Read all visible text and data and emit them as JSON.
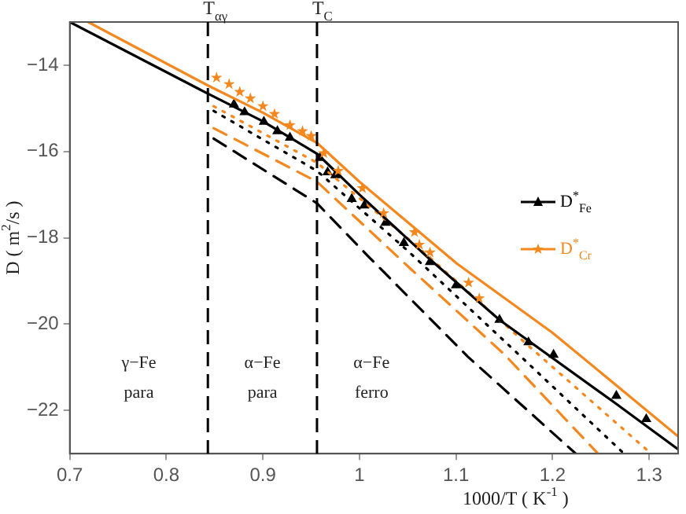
{
  "chart_data": {
    "type": "line",
    "xlabel": "1000/T ( K$^{-1}$ )",
    "ylabel": "D ( m$^{2}$/s )",
    "xlim": [
      0.7,
      1.33
    ],
    "ylim": [
      -23,
      -13
    ],
    "xticks": [
      0.7,
      0.8,
      0.9,
      1,
      1.1,
      1.2,
      1.3
    ],
    "yticks": [
      {
        "value": -22,
        "label": "−22"
      },
      {
        "value": -20,
        "label": "−20"
      },
      {
        "value": -18,
        "label": "−18"
      },
      {
        "value": -16,
        "label": "−16"
      },
      {
        "value": -14,
        "label": "−14"
      }
    ],
    "grid": false,
    "legend": "right",
    "marker": "none",
    "series": [
      {
        "name": "D$^{*}$$_{Fe}$",
        "color": "#000000",
        "line_style": "solid",
        "x": [
          0.7,
          0.843,
          0.9,
          0.956,
          1.0,
          1.073,
          1.145,
          1.263,
          1.33
        ],
        "values": [
          -13,
          -14.66,
          -15.3,
          -16.05,
          -17.0,
          -18.5,
          -19.9,
          -21.8,
          -22.9
        ]
      },
      {
        "name": "D$^{*}$$_{Cr}$",
        "color": "#f5871f",
        "line_style": "solid",
        "x": [
          0.719,
          0.843,
          0.9,
          0.956,
          1.0,
          1.101,
          1.2,
          1.33
        ],
        "values": [
          -13,
          -14.47,
          -15.1,
          -15.8,
          -16.7,
          -18.6,
          -20.2,
          -22.6
        ]
      },
      {
        "color": "#f5871f",
        "line_style": "dotted",
        "x": [
          0.849,
          0.956,
          1.06,
          1.18,
          1.302
        ],
        "values": [
          -14.95,
          -16.26,
          -18.2,
          -20.6,
          -23
        ]
      },
      {
        "color": "#000000",
        "line_style": "dotted",
        "x": [
          0.849,
          0.956,
          1.05,
          1.16,
          1.274
        ],
        "values": [
          -15.06,
          -16.45,
          -18.3,
          -20.6,
          -23
        ]
      },
      {
        "color": "#f5871f",
        "line_style": "dashed",
        "x": [
          0.849,
          0.956,
          1.054,
          1.15,
          1.247
        ],
        "values": [
          -15.46,
          -16.7,
          -18.74,
          -20.7,
          -23
        ]
      },
      {
        "color": "#000000",
        "line_style": "dashed",
        "x": [
          0.849,
          0.956,
          1.01,
          1.112,
          1.224
        ],
        "values": [
          -15.7,
          -17.2,
          -18.45,
          -20.75,
          -23
        ]
      },
      {
        "type": "scatter",
        "marker": "star",
        "color": "#f5871f",
        "x": [
          0.852,
          0.865,
          0.876,
          0.887,
          0.9,
          0.912,
          0.928,
          0.941,
          0.95,
          0.963,
          0.978,
          1.003,
          1.025,
          1.057,
          1.062,
          1.073,
          1.113,
          1.124
        ],
        "values": [
          -14.29,
          -14.44,
          -14.62,
          -14.77,
          -14.95,
          -15.13,
          -15.39,
          -15.53,
          -15.64,
          -16.04,
          -16.45,
          -16.85,
          -17.43,
          -17.87,
          -18.16,
          -18.34,
          -19.04,
          -19.4
        ]
      },
      {
        "type": "scatter",
        "marker": "triangle",
        "color": "#000000",
        "x": [
          0.87,
          0.881,
          0.901,
          0.915,
          0.928,
          0.959,
          0.967,
          0.975,
          0.992,
          1.005,
          1.027,
          1.046,
          1.073,
          1.1,
          1.145,
          1.175,
          1.201,
          1.266,
          1.297
        ],
        "values": [
          -14.91,
          -15.09,
          -15.31,
          -15.53,
          -15.68,
          -16.15,
          -16.48,
          -16.55,
          -17.1,
          -17.25,
          -17.65,
          -18.12,
          -18.56,
          -19.1,
          -19.9,
          -20.42,
          -20.71,
          -21.66,
          -22.2
        ]
      }
    ],
    "ref_lines": [
      {
        "axis": "x",
        "value": 0.843,
        "label": "T$_{αγ}$",
        "color": "#000000",
        "line_style": "dashed"
      },
      {
        "axis": "x",
        "value": 0.956,
        "label": "T$_{C}$",
        "color": "#000000",
        "line_style": "dashed"
      }
    ],
    "annotations": [
      "γ−Fe",
      "para",
      "α−Fe",
      "para",
      "α−Fe",
      "ferro"
    ]
  }
}
